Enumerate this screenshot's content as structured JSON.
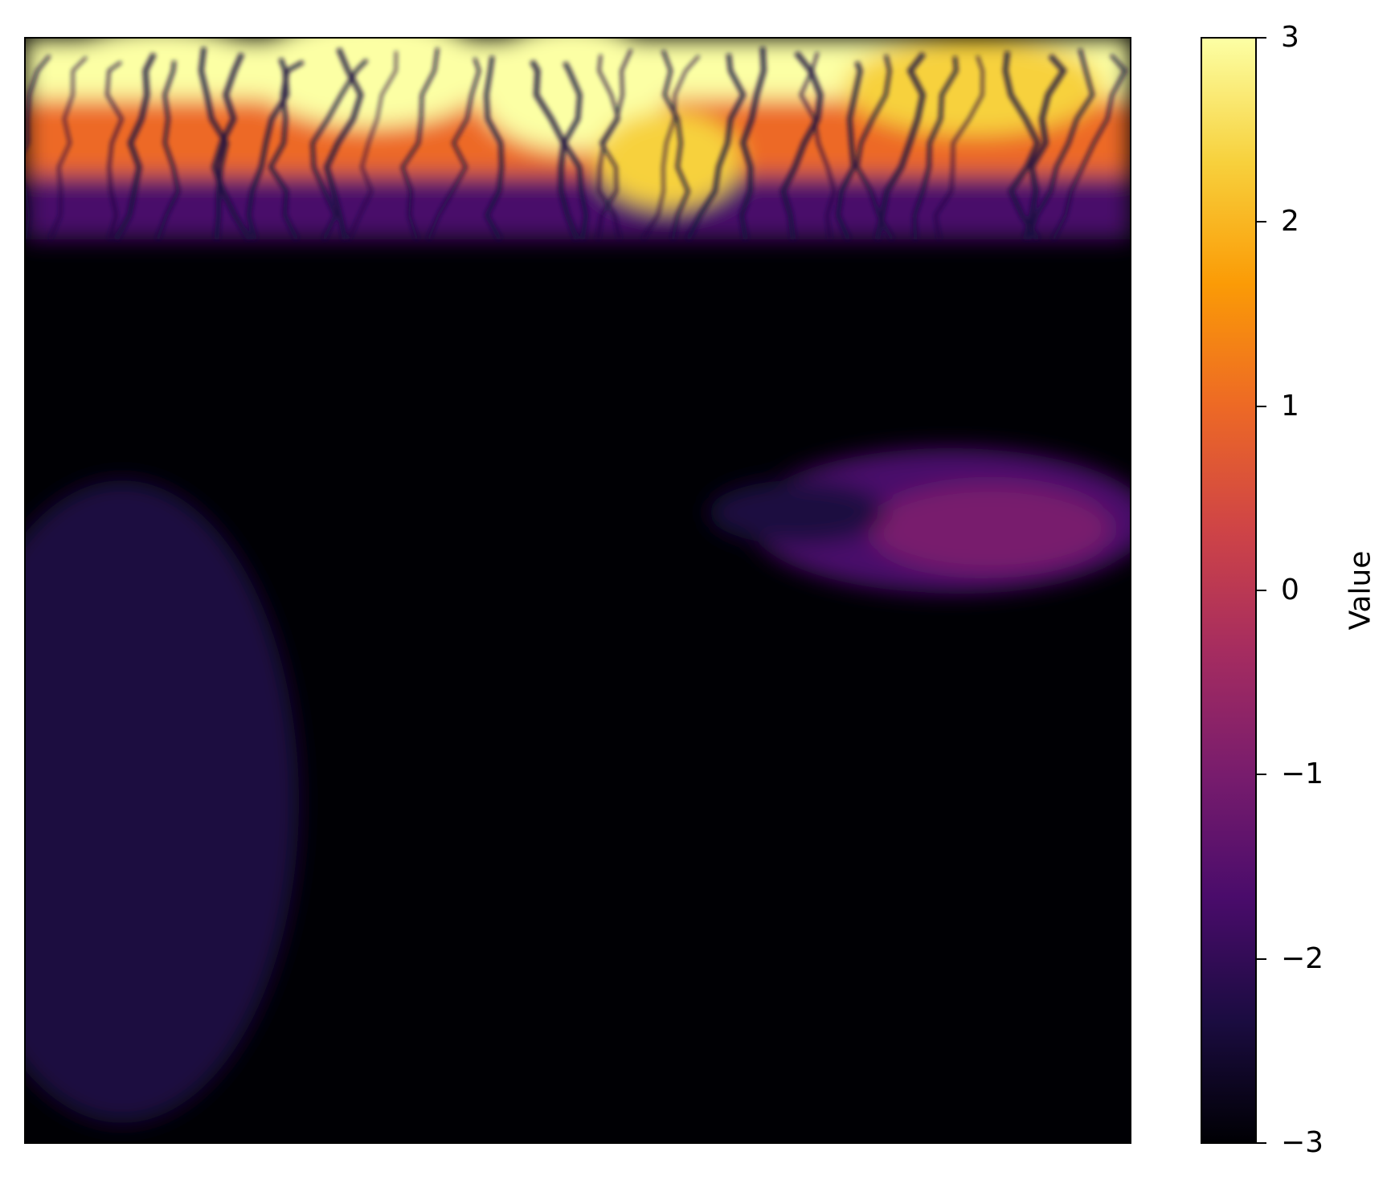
{
  "chart_data": {
    "type": "heatmap",
    "title": "",
    "xlabel": "",
    "ylabel": "",
    "colormap": "inferno",
    "colors": [
      "#000004",
      "#1b0c41",
      "#4a0c6b",
      "#781c6d",
      "#a52c60",
      "#cf4446",
      "#ed6925",
      "#fb9b06",
      "#f7d13d",
      "#fcffa4"
    ],
    "value_range": [
      -3,
      3
    ],
    "grid": false,
    "axes_ticks_shown": false,
    "colorbar": {
      "label": "Value",
      "ticks": [
        3,
        2,
        1,
        0,
        -1,
        -2,
        -3
      ],
      "tick_labels": [
        "3",
        "2",
        "1",
        "0",
        "−1",
        "−2",
        "−3"
      ]
    }
  }
}
